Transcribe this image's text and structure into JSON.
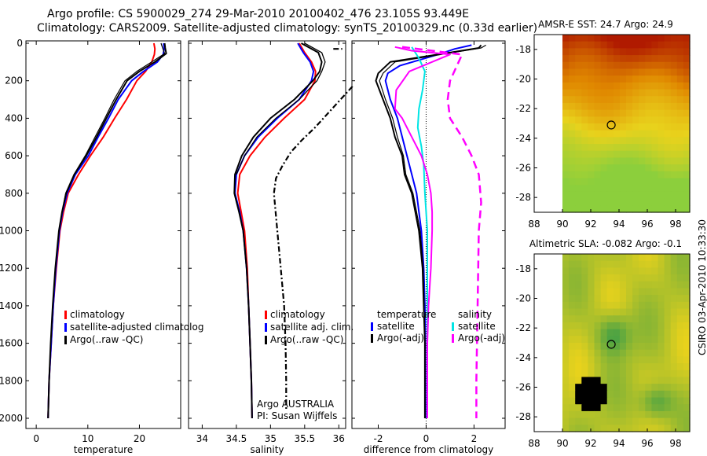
{
  "header": {
    "title_line1": "Argo profile: CS 5900029_274 29-Mar-2010 20100402_476 23.105S 93.449E",
    "title_line2": "Climatology: CARS2009. Satellite-adjusted climatology: synTS_20100329.nc (0.33d earlier)"
  },
  "side_label": "CSIRO 03-Apr-2010 10:33:30",
  "colors": {
    "climatology": "#ff0000",
    "satellite": "#0000ff",
    "argo": "#000000",
    "sal_satellite": "#00e5e5",
    "sal_argo": "#ff00ff",
    "hot": "#b01a00",
    "warm": "#e08800",
    "mild": "#e8d21c",
    "cool": "#8ccf3c",
    "cold": "#2f9a4a"
  },
  "chart_data": [
    {
      "id": "temperature",
      "type": "line",
      "xlabel": "temperature",
      "ylabel": "",
      "xlim": [
        -2,
        28
      ],
      "ylim": [
        2050,
        0
      ],
      "xticks": [
        0,
        10,
        20
      ],
      "yticks": [
        0,
        200,
        400,
        600,
        800,
        1000,
        1200,
        1400,
        1600,
        1800,
        2000
      ],
      "legend": [
        "climatology",
        "satellite-adjusted climatolog",
        "Argo(..raw -QC)"
      ],
      "series": [
        {
          "name": "climatology",
          "color": "climatology",
          "width": 2,
          "x": [
            22.8,
            23.0,
            22.9,
            22.4,
            21.2,
            19.5,
            17.5,
            15.2,
            13.0,
            10.5,
            8.2,
            6.2,
            5.3,
            4.6,
            3.9,
            3.3,
            2.9,
            2.5,
            2.3
          ],
          "y": [
            0,
            30,
            60,
            100,
            150,
            200,
            300,
            400,
            500,
            600,
            700,
            800,
            900,
            1000,
            1200,
            1400,
            1600,
            1800,
            2000
          ]
        },
        {
          "name": "satellite-adjusted climatolog",
          "color": "satellite",
          "width": 2,
          "x": [
            24.7,
            24.8,
            24.6,
            23.5,
            20.8,
            18.5,
            15.9,
            14.0,
            12.0,
            10.1,
            7.6,
            6.0,
            5.1,
            4.5,
            3.8,
            3.3,
            2.9,
            2.5,
            2.3
          ],
          "y": [
            0,
            30,
            60,
            100,
            150,
            200,
            300,
            400,
            500,
            600,
            700,
            800,
            900,
            1000,
            1200,
            1400,
            1600,
            1800,
            2000
          ]
        },
        {
          "name": "Argo(..raw -QC)",
          "color": "argo",
          "width": 2,
          "x": [
            24.9,
            25.0,
            25.2,
            23.0,
            20.0,
            17.6,
            15.5,
            13.6,
            11.7,
            9.7,
            7.4,
            5.8,
            5.0,
            4.4,
            3.7,
            3.2,
            2.8,
            2.5,
            2.3
          ],
          "y": [
            0,
            25,
            55,
            100,
            150,
            200,
            300,
            400,
            500,
            600,
            700,
            800,
            900,
            1000,
            1200,
            1400,
            1600,
            1800,
            2000
          ]
        },
        {
          "name": "",
          "color": "argo",
          "width": 1.2,
          "x": [
            24.2,
            24.5,
            24.9,
            22.4,
            19.5,
            17.2,
            15.1,
            13.3,
            11.4,
            9.5,
            7.3,
            5.7,
            5.0
          ],
          "y": [
            0,
            25,
            55,
            100,
            150,
            200,
            300,
            400,
            500,
            600,
            700,
            800,
            900
          ]
        }
      ]
    },
    {
      "id": "salinity",
      "type": "line",
      "xlabel": "salinity",
      "ylabel": "",
      "xlim": [
        33.8,
        36.1
      ],
      "ylim": [
        2050,
        0
      ],
      "xticks": [
        34,
        34.5,
        35,
        35.5,
        36
      ],
      "legend": [
        "climatology",
        "satellite adj. clim.",
        "Argo(..raw -QC)"
      ],
      "annotation": [
        "Argo AUSTRALIA",
        "PI: Susan Wijffels"
      ],
      "series": [
        {
          "name": "climatology",
          "color": "climatology",
          "width": 2,
          "x": [
            35.42,
            35.5,
            35.6,
            35.66,
            35.65,
            35.5,
            35.2,
            34.92,
            34.7,
            34.55,
            34.52,
            34.57,
            34.62,
            34.66,
            34.68,
            34.7,
            34.72,
            34.73
          ],
          "y": [
            0,
            50,
            100,
            150,
            200,
            300,
            400,
            500,
            600,
            700,
            800,
            900,
            1000,
            1200,
            1400,
            1600,
            1800,
            2000
          ]
        },
        {
          "name": "satellite adj. clim.",
          "color": "satellite",
          "width": 2,
          "x": [
            35.4,
            35.48,
            35.58,
            35.63,
            35.6,
            35.42,
            35.1,
            34.82,
            34.62,
            34.5,
            34.48,
            34.55,
            34.6,
            34.65,
            34.68,
            34.7,
            34.72,
            34.73
          ],
          "y": [
            0,
            50,
            100,
            150,
            200,
            300,
            400,
            500,
            600,
            700,
            800,
            900,
            1000,
            1200,
            1400,
            1600,
            1800,
            2000
          ]
        },
        {
          "name": "Argo(..raw -QC)",
          "color": "argo",
          "width": 2,
          "x": [
            35.45,
            35.7,
            35.75,
            35.72,
            35.62,
            35.35,
            35.0,
            34.75,
            34.58,
            34.48,
            34.47,
            34.54,
            34.6,
            34.65,
            34.68,
            34.7,
            34.72,
            34.73
          ],
          "y": [
            0,
            50,
            100,
            150,
            200,
            300,
            400,
            500,
            600,
            700,
            800,
            900,
            1000,
            1200,
            1400,
            1600,
            1800,
            2000
          ]
        },
        {
          "name": "",
          "color": "argo",
          "width": 1.3,
          "x": [
            35.5,
            35.75,
            35.8,
            35.75,
            35.68,
            35.42,
            35.08,
            34.8,
            34.62,
            34.5
          ],
          "y": [
            0,
            50,
            100,
            150,
            200,
            300,
            400,
            500,
            600,
            700
          ]
        },
        {
          "name": "",
          "color": "argo",
          "width": 2.2,
          "dash": "7,3,2,3",
          "x": [
            36.2,
            35.9,
            35.65,
            35.45,
            35.3,
            35.18,
            35.08,
            35.05,
            35.1,
            35.15,
            35.2,
            35.22,
            35.23,
            35.23
          ],
          "y": [
            230,
            350,
            450,
            520,
            580,
            650,
            720,
            800,
            1000,
            1200,
            1400,
            1600,
            1800,
            1950
          ]
        },
        {
          "name": "",
          "color": "argo",
          "width": 2.2,
          "dash": "7,3,2,3",
          "x": [
            35.92,
            36.05
          ],
          "y": [
            30,
            30
          ]
        }
      ]
    },
    {
      "id": "difference",
      "type": "line",
      "xlabel": "difference from climatology",
      "ylabel": "",
      "xlim": [
        -3.1,
        3.3
      ],
      "ylim": [
        2050,
        0
      ],
      "xticks": [
        -2,
        0,
        2
      ],
      "legend_temperature": [
        "temperature",
        "satellite",
        "Argo(-adj)"
      ],
      "legend_salinity": [
        "salinity",
        "satellite",
        "Argo(-adj)"
      ],
      "series": [
        {
          "name": "satellite",
          "color": "satellite",
          "width": 2,
          "x": [
            1.9,
            1.2,
            0.5,
            -1.1,
            -1.6,
            -1.7,
            -1.5,
            -1.2,
            -1.0,
            -0.8,
            -0.6,
            -0.4,
            -0.3,
            -0.2,
            -0.1,
            -0.05,
            -0.03,
            -0.02
          ],
          "y": [
            10,
            30,
            60,
            120,
            160,
            200,
            300,
            400,
            500,
            600,
            700,
            800,
            900,
            1000,
            1200,
            1400,
            1600,
            2000
          ]
        },
        {
          "name": "Argo(-adj)",
          "color": "argo",
          "width": 2,
          "x": [
            2.3,
            2.2,
            1.0,
            -1.5,
            -2.0,
            -2.1,
            -1.8,
            -1.5,
            -1.3,
            -1.0,
            -0.9,
            -0.6,
            -0.45,
            -0.3,
            -0.15,
            -0.1,
            -0.05,
            -0.05
          ],
          "y": [
            10,
            25,
            50,
            100,
            160,
            200,
            300,
            400,
            500,
            600,
            700,
            800,
            900,
            1000,
            1200,
            1400,
            1600,
            2000
          ]
        },
        {
          "name": "",
          "color": "argo",
          "width": 1.2,
          "x": [
            2.5,
            2.3,
            1.1,
            -1.3,
            -1.8,
            -1.95,
            -1.7,
            -1.4,
            -1.2,
            -0.95,
            -0.85,
            -0.55,
            -0.4,
            -0.25,
            -0.12,
            -0.08
          ],
          "y": [
            10,
            25,
            50,
            100,
            160,
            200,
            300,
            400,
            500,
            600,
            700,
            800,
            900,
            1000,
            1200,
            1400
          ]
        },
        {
          "name": "satellite",
          "color": "sal_satellite",
          "width": 2,
          "x": [
            -0.6,
            -0.3,
            -0.05,
            -0.15,
            -0.3,
            -0.35,
            -0.2,
            -0.1,
            -0.05,
            0.05,
            0.05,
            0.05,
            0.05,
            0.05,
            0.05
          ],
          "y": [
            20,
            80,
            150,
            250,
            350,
            450,
            550,
            650,
            800,
            1000,
            1200,
            1400,
            1600,
            1800,
            2000
          ]
        },
        {
          "name": "Argo(-adj)",
          "color": "sal_argo",
          "width": 2,
          "x": [
            -1.3,
            -0.6,
            1.0,
            -0.7,
            -1.25,
            -1.3,
            -1.0,
            -0.6,
            -0.2,
            0.05,
            0.2,
            0.25,
            0.25,
            0.2,
            0.1,
            0.05,
            0.05
          ],
          "y": [
            20,
            40,
            60,
            150,
            250,
            350,
            400,
            500,
            600,
            700,
            800,
            900,
            1000,
            1200,
            1400,
            1600,
            2000
          ]
        },
        {
          "name": "",
          "color": "sal_argo",
          "width": 2.5,
          "dash": "10,6",
          "x": [
            -1.0,
            1.5,
            1.0,
            0.9,
            1.0,
            1.5,
            1.9,
            2.2,
            2.3,
            2.2,
            2.15,
            2.1,
            2.1
          ],
          "y": [
            20,
            60,
            200,
            300,
            400,
            500,
            600,
            700,
            850,
            1000,
            1400,
            1800,
            2000
          ]
        }
      ]
    },
    {
      "id": "sst_map",
      "type": "heatmap",
      "title": "AMSR-E SST: 24.7 Argo: 24.9",
      "xlim": [
        88,
        99
      ],
      "ylim": [
        -29,
        -17
      ],
      "xticks": [
        88,
        90,
        92,
        94,
        96,
        98
      ],
      "yticks": [
        -18,
        -20,
        -22,
        -24,
        -26,
        -28
      ],
      "data_xlim": [
        90,
        99
      ],
      "marker": [
        93.449,
        -23.105
      ]
    },
    {
      "id": "sla_map",
      "type": "heatmap",
      "title": "Altimetric SLA: -0.082 Argo: -0.1",
      "xlim": [
        88,
        99
      ],
      "ylim": [
        -29,
        -17
      ],
      "xticks": [
        88,
        90,
        92,
        94,
        96,
        98
      ],
      "yticks": [
        -18,
        -20,
        -22,
        -24,
        -26,
        -28
      ],
      "data_xlim": [
        90,
        99
      ],
      "marker": [
        93.449,
        -23.105
      ]
    }
  ]
}
